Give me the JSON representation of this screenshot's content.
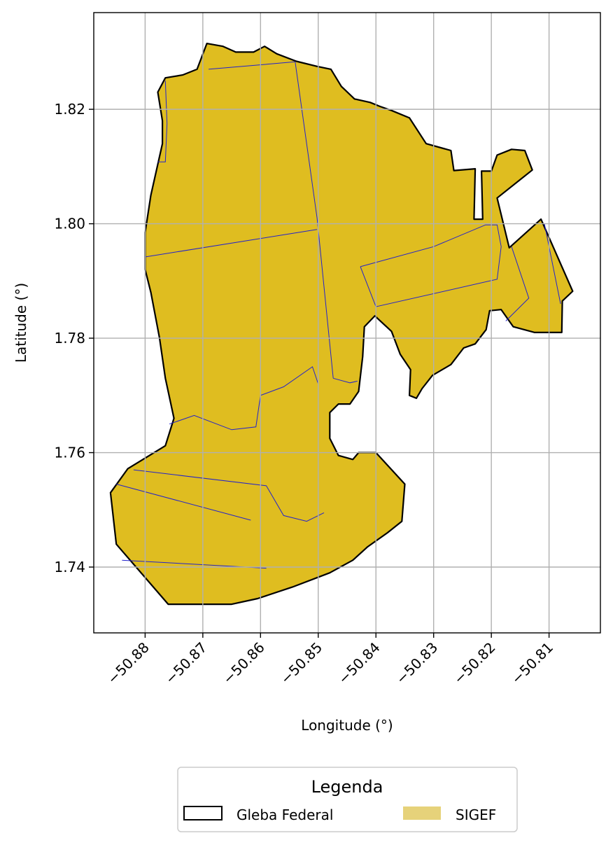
{
  "chart_data": {
    "type": "map",
    "xlabel": "Longitude (°)",
    "ylabel": "Latitude (°)",
    "xlim": [
      -50.8889,
      -50.8011
    ],
    "ylim": [
      1.7285,
      1.8369
    ],
    "x_ticks": [
      -50.88,
      -50.87,
      -50.86,
      -50.85,
      -50.84,
      -50.83,
      -50.82,
      -50.81
    ],
    "x_tick_labels": [
      "−50.88",
      "−50.87",
      "−50.86",
      "−50.85",
      "−50.84",
      "−50.83",
      "−50.82",
      "−50.81"
    ],
    "y_ticks": [
      1.74,
      1.76,
      1.78,
      1.8,
      1.82
    ],
    "y_tick_labels": [
      "1.74",
      "1.76",
      "1.78",
      "1.80",
      "1.82"
    ],
    "grid": true,
    "legend": {
      "title": "Legenda",
      "placement": "bottom-center",
      "entries": [
        {
          "label": "Gleba Federal",
          "style": "outline",
          "color": "#000000"
        },
        {
          "label": "SIGEF",
          "style": "fill",
          "color": "#e6d27a"
        }
      ]
    },
    "layers": [
      {
        "name": "Gleba Federal",
        "edge_color": "#000000",
        "fill_color": "#dfbd20"
      },
      {
        "name": "SIGEF",
        "edge_color": "#2222cc"
      }
    ],
    "boundary": [
      [
        -50.871,
        1.827
      ],
      [
        -50.8693,
        1.8315
      ],
      [
        -50.8665,
        1.831
      ],
      [
        -50.8643,
        1.83
      ],
      [
        -50.8612,
        1.83
      ],
      [
        -50.8593,
        1.831
      ],
      [
        -50.8572,
        1.8297
      ],
      [
        -50.8538,
        1.8284
      ],
      [
        -50.8502,
        1.8275
      ],
      [
        -50.8478,
        1.827
      ],
      [
        -50.846,
        1.824
      ],
      [
        -50.8437,
        1.8218
      ],
      [
        -50.841,
        1.8212
      ],
      [
        -50.8393,
        1.8205
      ],
      [
        -50.8373,
        1.8198
      ],
      [
        -50.8342,
        1.8185
      ],
      [
        -50.8313,
        1.814
      ],
      [
        -50.827,
        1.8128
      ],
      [
        -50.8265,
        1.8093
      ],
      [
        -50.8228,
        1.8096
      ],
      [
        -50.823,
        1.8008
      ],
      [
        -50.8215,
        1.8008
      ],
      [
        -50.8217,
        1.8092
      ],
      [
        -50.82,
        1.8092
      ],
      [
        -50.819,
        1.812
      ],
      [
        -50.8165,
        1.813
      ],
      [
        -50.8142,
        1.8128
      ],
      [
        -50.8129,
        1.8094
      ],
      [
        -50.819,
        1.8045
      ],
      [
        -50.8169,
        1.7958
      ],
      [
        -50.8114,
        1.8008
      ],
      [
        -50.8059,
        1.7882
      ],
      [
        -50.8077,
        1.7865
      ],
      [
        -50.8078,
        1.781
      ],
      [
        -50.8125,
        1.781
      ],
      [
        -50.8162,
        1.782
      ],
      [
        -50.8183,
        1.785
      ],
      [
        -50.8203,
        1.7848
      ],
      [
        -50.8209,
        1.7815
      ],
      [
        -50.8228,
        1.779
      ],
      [
        -50.8248,
        1.7783
      ],
      [
        -50.827,
        1.7754
      ],
      [
        -50.8302,
        1.7735
      ],
      [
        -50.832,
        1.7712
      ],
      [
        -50.833,
        1.7695
      ],
      [
        -50.8342,
        1.77
      ],
      [
        -50.834,
        1.7745
      ],
      [
        -50.8358,
        1.7772
      ],
      [
        -50.8373,
        1.7812
      ],
      [
        -50.8402,
        1.7839
      ],
      [
        -50.842,
        1.782
      ],
      [
        -50.8423,
        1.7768
      ],
      [
        -50.843,
        1.7707
      ],
      [
        -50.8445,
        1.7685
      ],
      [
        -50.8465,
        1.7685
      ],
      [
        -50.848,
        1.767
      ],
      [
        -50.848,
        1.7625
      ],
      [
        -50.8465,
        1.7595
      ],
      [
        -50.844,
        1.7588
      ],
      [
        -50.843,
        1.76
      ],
      [
        -50.84,
        1.76
      ],
      [
        -50.835,
        1.7545
      ],
      [
        -50.8355,
        1.748
      ],
      [
        -50.838,
        1.746
      ],
      [
        -50.8415,
        1.7435
      ],
      [
        -50.844,
        1.7412
      ],
      [
        -50.848,
        1.739
      ],
      [
        -50.8545,
        1.7365
      ],
      [
        -50.8605,
        1.7345
      ],
      [
        -50.865,
        1.7335
      ],
      [
        -50.8704,
        1.7335
      ],
      [
        -50.876,
        1.7335
      ],
      [
        -50.885,
        1.744
      ],
      [
        -50.886,
        1.753
      ],
      [
        -50.883,
        1.7572
      ],
      [
        -50.8765,
        1.7612
      ],
      [
        -50.875,
        1.766
      ],
      [
        -50.8765,
        1.773
      ],
      [
        -50.8775,
        1.78
      ],
      [
        -50.879,
        1.788
      ],
      [
        -50.88,
        1.792
      ],
      [
        -50.88,
        1.7985
      ],
      [
        -50.879,
        1.805
      ],
      [
        -50.877,
        1.814
      ],
      [
        -50.877,
        1.818
      ],
      [
        -50.8778,
        1.823
      ],
      [
        -50.8765,
        1.8255
      ],
      [
        -50.8735,
        1.826
      ]
    ],
    "parcel_lines": [
      [
        [
          -50.8765,
          1.825
        ],
        [
          -50.8762,
          1.8175
        ],
        [
          -50.8765,
          1.8108
        ],
        [
          -50.8778,
          1.8108
        ]
      ],
      [
        [
          -50.869,
          1.827
        ],
        [
          -50.854,
          1.8283
        ]
      ],
      [
        [
          -50.854,
          1.8283
        ],
        [
          -50.8502,
          1.801
        ],
        [
          -50.8474,
          1.773
        ]
      ],
      [
        [
          -50.88,
          1.7942
        ],
        [
          -50.8502,
          1.799
        ]
      ],
      [
        [
          -50.8474,
          1.773
        ],
        [
          -50.8445,
          1.7722
        ],
        [
          -50.8432,
          1.7725
        ]
      ],
      [
        [
          -50.8758,
          1.765
        ],
        [
          -50.8715,
          1.7665
        ],
        [
          -50.865,
          1.764
        ],
        [
          -50.8608,
          1.7645
        ],
        [
          -50.86,
          1.77
        ],
        [
          -50.856,
          1.7715
        ],
        [
          -50.851,
          1.775
        ],
        [
          -50.85,
          1.772
        ]
      ],
      [
        [
          -50.8427,
          1.7925
        ],
        [
          -50.84,
          1.7855
        ],
        [
          -50.819,
          1.7903
        ],
        [
          -50.8183,
          1.796
        ],
        [
          -50.819,
          1.7998
        ],
        [
          -50.821,
          1.7998
        ],
        [
          -50.83,
          1.796
        ],
        [
          -50.8427,
          1.7925
        ]
      ],
      [
        [
          -50.8165,
          1.796
        ],
        [
          -50.8135,
          1.787
        ],
        [
          -50.8175,
          1.783
        ]
      ],
      [
        [
          -50.8108,
          1.8
        ],
        [
          -50.808,
          1.786
        ]
      ],
      [
        [
          -50.882,
          1.757
        ],
        [
          -50.859,
          1.7542
        ],
        [
          -50.856,
          1.749
        ],
        [
          -50.852,
          1.748
        ],
        [
          -50.849,
          1.7495
        ]
      ],
      [
        [
          -50.885,
          1.7545
        ],
        [
          -50.8617,
          1.7482
        ]
      ],
      [
        [
          -50.884,
          1.7412
        ],
        [
          -50.859,
          1.7398
        ]
      ]
    ]
  }
}
